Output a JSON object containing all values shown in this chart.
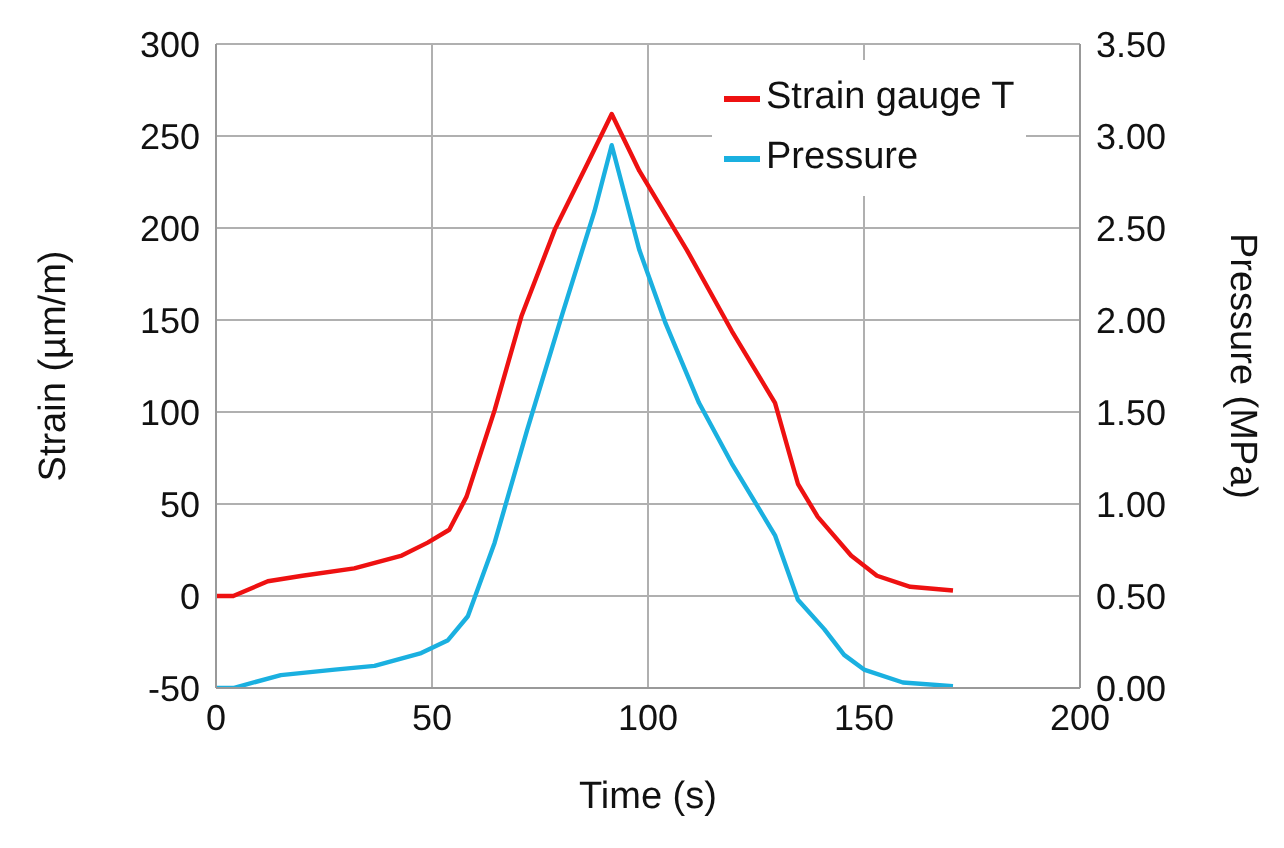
{
  "chart_data": {
    "type": "line",
    "xlabel": "Time (s)",
    "ylabel": "Strain (µm/m)",
    "y2label": "Pressure (MPa)",
    "xlim": [
      0,
      200
    ],
    "xticks": [
      0,
      50,
      100,
      150,
      200
    ],
    "ylim": [
      -50,
      300
    ],
    "yticks": [
      -50,
      0,
      50,
      100,
      150,
      200,
      250,
      300
    ],
    "y2lim": [
      0,
      3.5
    ],
    "y2ticks": [
      {
        "value": 0,
        "label": "0.00"
      },
      {
        "value": 0.5,
        "label": "0.50"
      },
      {
        "value": 1,
        "label": "1.00"
      },
      {
        "value": 1.5,
        "label": "1.50"
      },
      {
        "value": 2,
        "label": "2.00"
      },
      {
        "value": 2.5,
        "label": "2.50"
      },
      {
        "value": 3,
        "label": "3.00"
      },
      {
        "value": 3.5,
        "label": "3.50"
      }
    ],
    "grid": true,
    "legend": "top right",
    "marker": "none",
    "line_style": "solid",
    "series": [
      {
        "name": "Strain gauge T",
        "color": "#ee1111",
        "x": [
          0,
          4,
          12,
          20,
          32,
          43,
          49,
          54,
          58,
          64.5,
          70.7,
          78.4,
          86,
          91.6,
          98,
          109,
          119.4,
          129.4,
          134.7,
          139.3,
          147,
          153,
          160.7,
          170.6
        ],
        "values": [
          0,
          0,
          8,
          11,
          15,
          22,
          29,
          36,
          54,
          101,
          152,
          199,
          235,
          262,
          231,
          188,
          144,
          105,
          61,
          43,
          22,
          11,
          5,
          3
        ]
      },
      {
        "name": "Pressure",
        "color": "#1ab0e0",
        "axis": "y2",
        "x": [
          0,
          4,
          15,
          27.5,
          36.7,
          47.5,
          53.7,
          58.3,
          64.5,
          72,
          80,
          87.6,
          91.6,
          98,
          104.1,
          111.8,
          119.4,
          129.4,
          134.7,
          140.8,
          145.4,
          150,
          159,
          170.6
        ],
        "values": [
          0,
          0,
          0.07,
          0.1,
          0.12,
          0.19,
          0.26,
          0.39,
          0.79,
          1.4,
          2.02,
          2.59,
          2.95,
          2.38,
          1.98,
          1.55,
          1.22,
          0.83,
          0.48,
          0.32,
          0.18,
          0.1,
          0.03,
          0.01
        ]
      }
    ]
  }
}
